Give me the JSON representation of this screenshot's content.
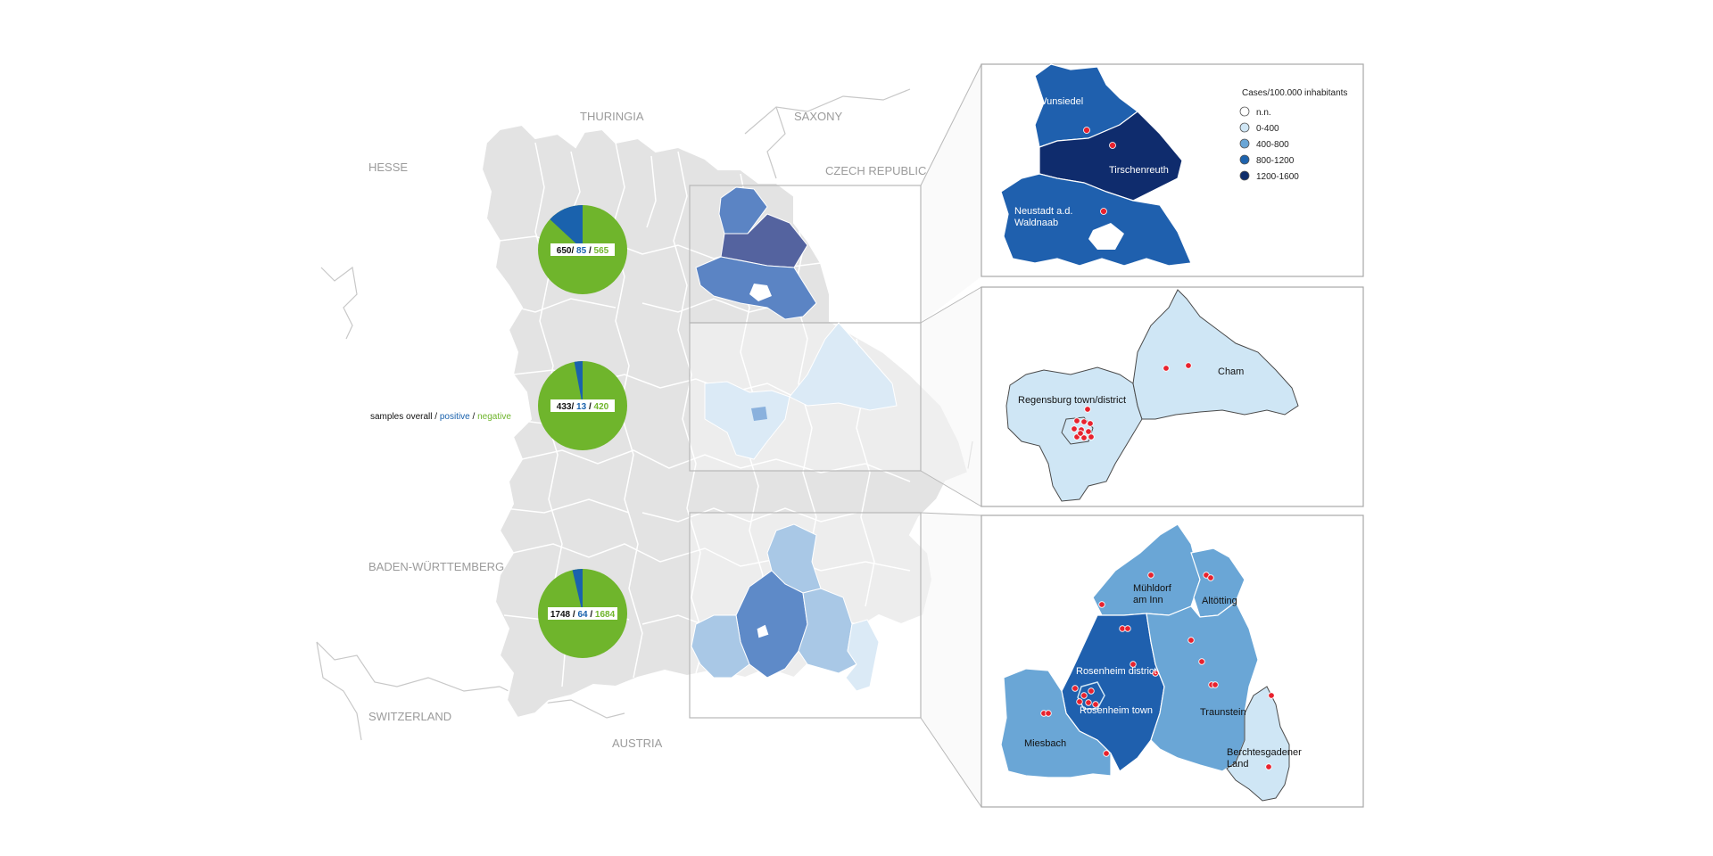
{
  "neighbors": {
    "thuringia": "THURINGIA",
    "saxony": "SAXONY",
    "hesse": "HESSE",
    "czech": "CZECH REPUBLIC",
    "bw": "BADEN-WÜRTTEMBERG",
    "switzerland": "SWITZERLAND",
    "austria": "AUSTRIA"
  },
  "samples_legend": {
    "overall": "samples overall",
    "sep1": " / ",
    "positive": "positive",
    "sep2": " / ",
    "negative": "negative"
  },
  "pies": [
    {
      "overall": "650",
      "sep1": "/ ",
      "positive": "85",
      "sep2": " / ",
      "negative": "565",
      "overall_value": 650,
      "positive_value": 85,
      "negative_value": 565
    },
    {
      "overall": "433",
      "sep1": "/ ",
      "positive": "13",
      "sep2": " / ",
      "negative": "420",
      "overall_value": 433,
      "positive_value": 13,
      "negative_value": 420
    },
    {
      "overall": "1748",
      "sep1": " / ",
      "positive": "64",
      "sep2": " / ",
      "negative": "1684",
      "overall_value": 1748,
      "positive_value": 64,
      "negative_value": 1684
    }
  ],
  "legend": {
    "title": "Cases/100.000 inhabitants",
    "items": [
      {
        "label": "n.n.",
        "color": "#ffffff"
      },
      {
        "label": "0-400",
        "color": "#cfe6f5"
      },
      {
        "label": "400-800",
        "color": "#6aa6d6"
      },
      {
        "label": "800-1200",
        "color": "#1e63ad"
      },
      {
        "label": "1200-1600",
        "color": "#0e2d6b"
      }
    ]
  },
  "region1": {
    "wunsiedel": "Wunsiedel",
    "tirschenreuth": "Tirschenreuth",
    "neustadt_line1": "Neustadt a.d.",
    "neustadt_line2": "Waldnaab"
  },
  "region2": {
    "regensburg": "Regensburg town/district",
    "cham": "Cham"
  },
  "region3": {
    "muhldorf_line1": "Mühldorf",
    "muhldorf_line2": "am Inn",
    "altotting": "Altötting",
    "rosenheim_district": "Rosenheim district",
    "rosenheim_town": "Rosenheim town",
    "traunstein": "Traunstein",
    "miesbach": "Miesbach",
    "berchtesgaden_line1": "Berchtesgadener",
    "berchtesgaden_line2": "Land"
  },
  "colors": {
    "pie_positive": "#1a62ad",
    "pie_negative": "#6fb52c",
    "dot": "#e8222e",
    "map_gray": "#e3e3e3"
  }
}
